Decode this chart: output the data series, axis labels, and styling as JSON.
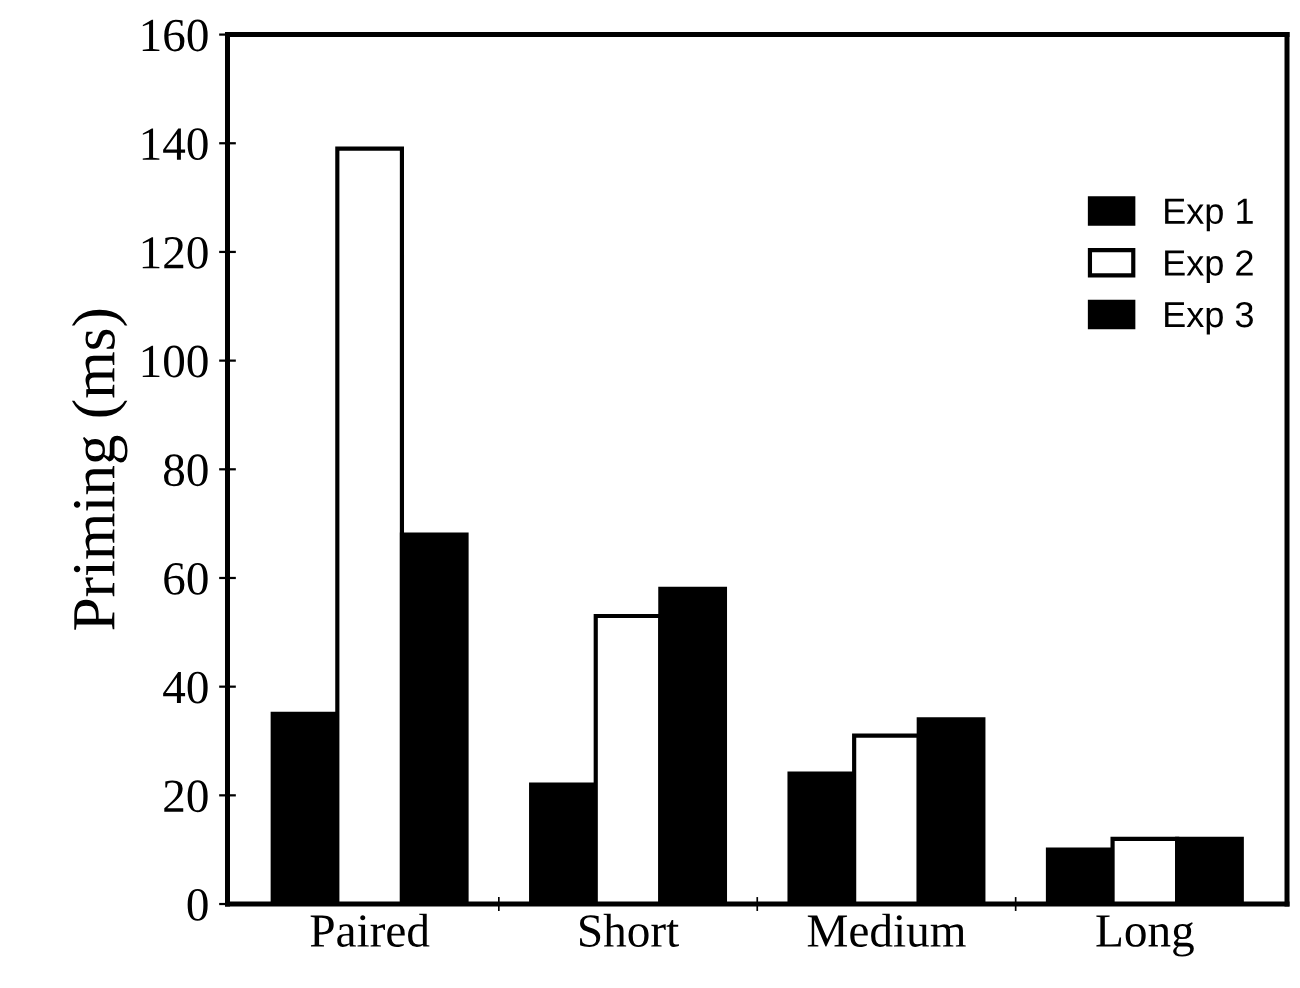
{
  "chart_data": {
    "type": "bar",
    "ylabel": "Priming (ms)",
    "categories": [
      "Paired",
      "Short",
      "Medium",
      "Long"
    ],
    "series": [
      {
        "name": "Exp 1",
        "color": "#000000",
        "values": [
          35,
          22,
          24,
          10
        ]
      },
      {
        "name": "Exp 2",
        "color": "#ffffff",
        "values": [
          139,
          53,
          31,
          12
        ]
      },
      {
        "name": "Exp 3",
        "color": "#000000",
        "values": [
          68,
          58,
          34,
          12
        ]
      }
    ],
    "ylim": [
      0,
      160
    ],
    "yticks": [
      0,
      20,
      40,
      60,
      80,
      100,
      120,
      140,
      160
    ],
    "grid": false,
    "legend": "top right"
  }
}
